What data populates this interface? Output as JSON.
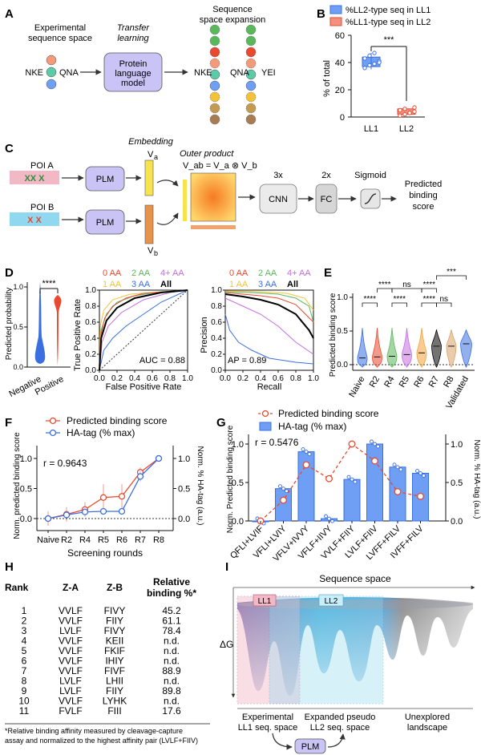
{
  "colors": {
    "blue": "#3b6fe0",
    "red": "#e8492f",
    "lavender": "#c9c4f5",
    "gray_box": "#d9d9d9",
    "pink": "#f2b8c6",
    "cyan": "#8fd8ef"
  },
  "panelA": {
    "label": "A",
    "exp_space": [
      "Experimental",
      "sequence space"
    ],
    "transfer": [
      "Transfer",
      "learning"
    ],
    "plm_box": [
      "Protein",
      "language",
      "model"
    ],
    "expansion": [
      "Sequence",
      "space expansion"
    ],
    "seq_left": "NKE",
    "seq_mid": "QNA",
    "seq_right": "YEI"
  },
  "panelB": {
    "label": "B",
    "legend": [
      "%LL2-type seq in LL1",
      "%LL1-type seq in LL2"
    ],
    "ylabel": "% of total",
    "sig": "***",
    "xcats": [
      "LL1",
      "LL2"
    ],
    "yticks": [
      "0",
      "20",
      "40",
      "60"
    ]
  },
  "panelC": {
    "label": "C",
    "poi_a": "POI A",
    "poi_a_marks": "XX X",
    "poi_b": "POI B",
    "poi_b_marks": "X X",
    "plm": "PLM",
    "embedding": "Embedding",
    "va": "V",
    "va_sub": "a",
    "vb": "V",
    "vb_sub": "b",
    "outer_product": "Outer product",
    "formula": "V_ab = V_a ⊗ V_b",
    "cnn_mult": "3x",
    "cnn": "CNN",
    "fc_mult": "2x",
    "fc": "FC",
    "sigmoid": "Sigmoid",
    "output": [
      "Predicted",
      "binding",
      "score"
    ]
  },
  "panelD": {
    "label": "D",
    "violin_ylabel": "Predicted probability",
    "violin_x": [
      "Negative",
      "Positive"
    ],
    "violin_sig": "****",
    "violin_yticks": [
      "0.0",
      "0.5",
      "1.0"
    ],
    "legend_row1": [
      "0 AA",
      "2 AA",
      "4+ AA"
    ],
    "legend_row2": [
      "1 AA",
      "3 AA",
      "All"
    ],
    "legend_colors": [
      "#e8492f",
      "#5bb75b",
      "#c46de0",
      "#f2c33a",
      "#3b6fe0",
      "#000000"
    ],
    "roc_ylabel": "True Positive Rate",
    "roc_xlabel": "False Positive Rate",
    "roc_auc": "AUC = 0.88",
    "pr_ylabel": "Precision",
    "pr_xlabel": "Recall",
    "pr_ap": "AP = 0.89",
    "ticks": [
      "0.0",
      "0.2",
      "0.4",
      "0.6",
      "0.8",
      "1.0"
    ]
  },
  "panelE": {
    "label": "E",
    "ylabel": "Predicted binding score",
    "cats": [
      "Naive",
      "R2",
      "R4",
      "R5",
      "R6",
      "R7",
      "R8",
      "Validated"
    ],
    "colors": [
      "#3b6fe0",
      "#e8492f",
      "#5bb75b",
      "#c46de0",
      "#f2a33a",
      "#000000",
      "#d9a066",
      "#3b6fe0"
    ],
    "sigs": [
      "****",
      "****",
      "ns",
      "****",
      "****",
      "****",
      "ns",
      "***"
    ],
    "yticks": [
      "0.0",
      "0.5",
      "1.0"
    ]
  },
  "panelF": {
    "label": "F",
    "legend": [
      "Predicted binding score",
      "HA-tag (% max)"
    ],
    "r": "r = 0.9643",
    "ylabel_left": "Norm. predicted binding score",
    "ylabel_right": "Norm. % HA-tag (a.u.)",
    "xlabel": "Screening rounds",
    "chart_data": {
      "type": "line",
      "categories": [
        "Naive",
        "R2",
        "R4",
        "R5",
        "R6",
        "R7",
        "R8"
      ],
      "series": [
        {
          "name": "Predicted binding score",
          "values": [
            0.0,
            0.07,
            0.15,
            0.35,
            0.37,
            0.77,
            1.0
          ],
          "err": [
            0.12,
            0.12,
            0.12,
            0.22,
            0.2,
            0.08,
            0.0
          ]
        },
        {
          "name": "HA-tag (% max)",
          "values": [
            0.0,
            0.06,
            0.11,
            0.12,
            0.12,
            0.7,
            1.0
          ],
          "err": [
            0.0,
            0.0,
            0.0,
            0.0,
            0.0,
            0.08,
            0.0
          ]
        }
      ],
      "yticks": [
        "0.0",
        "0.5",
        "1.0"
      ],
      "ylim": [
        -0.15,
        1.15
      ]
    }
  },
  "panelG": {
    "label": "G",
    "legend": [
      "Predicted binding score",
      "HA-tag (% max)"
    ],
    "r": "r = 0.5476",
    "ylabel_left": "Norm. Predicted binding score",
    "ylabel_right": "Norm. % HA-tag (a.u.)",
    "chart_data": {
      "type": "bar",
      "categories": [
        "QFLI+LVIF",
        "VFLI+LVIY",
        "VFLV+IVVY",
        "VFLF+IIVY",
        "VVLF+FIIY",
        "LVLF+FIIV",
        "LVFF+FILV",
        "IVFF+FILV"
      ],
      "bars": [
        0.0,
        0.42,
        0.9,
        0.03,
        0.54,
        1.0,
        0.7,
        0.62
      ],
      "line": [
        0.0,
        0.27,
        0.73,
        0.55,
        1.0,
        0.78,
        0.38,
        0.32
      ],
      "yticks": [
        "0.0",
        "0.5",
        "1.0"
      ],
      "ylim": [
        0,
        1.1
      ]
    }
  },
  "panelH": {
    "label": "H",
    "headers": [
      "Rank",
      "Z-A",
      "Z-B",
      "Relative",
      "binding %*"
    ],
    "rows": [
      [
        "1",
        "VVLF",
        "FIVY",
        "45.2"
      ],
      [
        "2",
        "VVLF",
        "FIIY",
        "61.1"
      ],
      [
        "3",
        "LVLF",
        "FIVY",
        "78.4"
      ],
      [
        "4",
        "VVLF",
        "KEII",
        "n.d."
      ],
      [
        "5",
        "VVLF",
        "FKIF",
        "n.d."
      ],
      [
        "6",
        "VVLF",
        "IHIY",
        "n.d."
      ],
      [
        "7",
        "VVLF",
        "FIVF",
        "88.9"
      ],
      [
        "8",
        "LVLF",
        "LHII",
        "n.d."
      ],
      [
        "9",
        "LVLF",
        "FIIY",
        "89.8"
      ],
      [
        "10",
        "VVLF",
        "LYHK",
        "n.d."
      ],
      [
        "11",
        "FVLF",
        "FIII",
        "17.6"
      ]
    ],
    "footnote": [
      "*Relative binding affinity measured by cleavage-capture",
      "assay and normalized to the highest affinity pair (LVLF+FIIV)"
    ]
  },
  "panelI": {
    "label": "I",
    "title": "Sequence space",
    "dg": "ΔG",
    "ll1": "LL1",
    "ll2": "LL2",
    "cap1": [
      "Experimental",
      "LL1 seq. space"
    ],
    "cap2": [
      "Expanded pseudo",
      "LL2 seq. space"
    ],
    "cap3": [
      "Unexplored",
      "landscape"
    ],
    "plm": "PLM"
  }
}
